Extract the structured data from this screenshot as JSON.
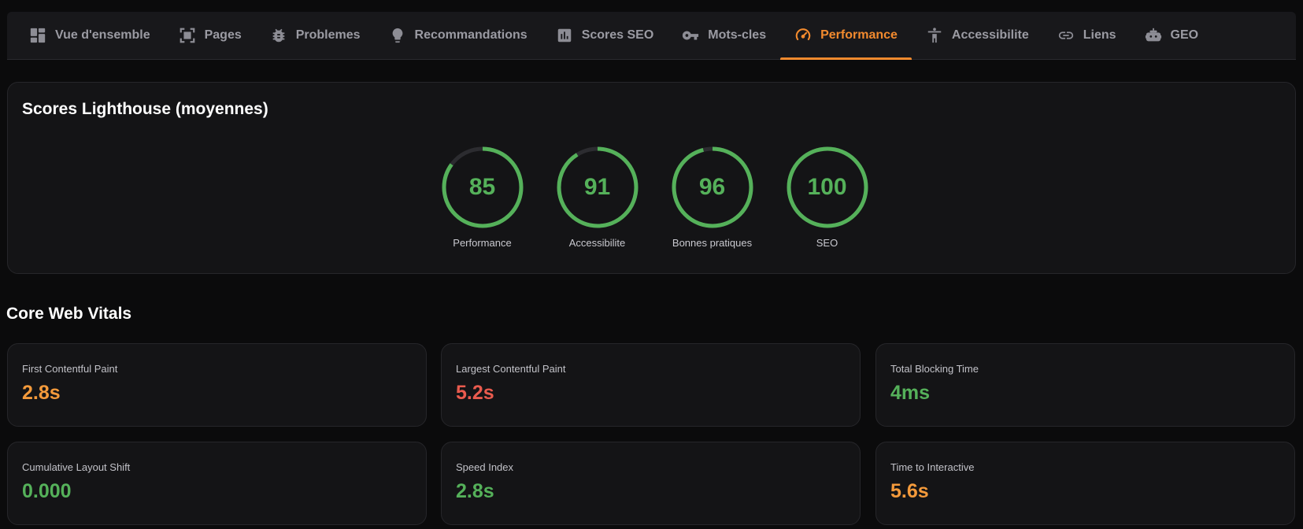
{
  "tabs": [
    {
      "label": "Vue d'ensemble",
      "icon": "dashboard-icon",
      "active": false
    },
    {
      "label": "Pages",
      "icon": "pages-icon",
      "active": false
    },
    {
      "label": "Problemes",
      "icon": "bug-icon",
      "active": false
    },
    {
      "label": "Recommandations",
      "icon": "lightbulb-icon",
      "active": false
    },
    {
      "label": "Scores SEO",
      "icon": "bar-chart-icon",
      "active": false
    },
    {
      "label": "Mots-cles",
      "icon": "key-icon",
      "active": false
    },
    {
      "label": "Performance",
      "icon": "speedometer-icon",
      "active": true
    },
    {
      "label": "Accessibilite",
      "icon": "accessibility-icon",
      "active": false
    },
    {
      "label": "Liens",
      "icon": "link-icon",
      "active": false
    },
    {
      "label": "GEO",
      "icon": "robot-icon",
      "active": false
    }
  ],
  "lighthouse": {
    "title": "Scores Lighthouse (moyennes)",
    "scores": [
      {
        "label": "Performance",
        "value": "85",
        "fraction": 0.85
      },
      {
        "label": "Accessibilite",
        "value": "91",
        "fraction": 0.91
      },
      {
        "label": "Bonnes pratiques",
        "value": "96",
        "fraction": 0.96
      },
      {
        "label": "SEO",
        "value": "100",
        "fraction": 1.0
      }
    ]
  },
  "core_web_vitals": {
    "title": "Core Web Vitals",
    "metrics": [
      {
        "label": "First Contentful Paint",
        "value": "2.8s",
        "status": "orange"
      },
      {
        "label": "Largest Contentful Paint",
        "value": "5.2s",
        "status": "red"
      },
      {
        "label": "Total Blocking Time",
        "value": "4ms",
        "status": "green"
      },
      {
        "label": "Cumulative Layout Shift",
        "value": "0.000",
        "status": "green"
      },
      {
        "label": "Speed Index",
        "value": "2.8s",
        "status": "green"
      },
      {
        "label": "Time to Interactive",
        "value": "5.6s",
        "status": "orange"
      }
    ]
  },
  "colors": {
    "accent": "#f28a2e",
    "good": "#55b15a",
    "average": "#f49a3b",
    "poor": "#ea5b4e",
    "ring_track": "#2c2c30"
  }
}
